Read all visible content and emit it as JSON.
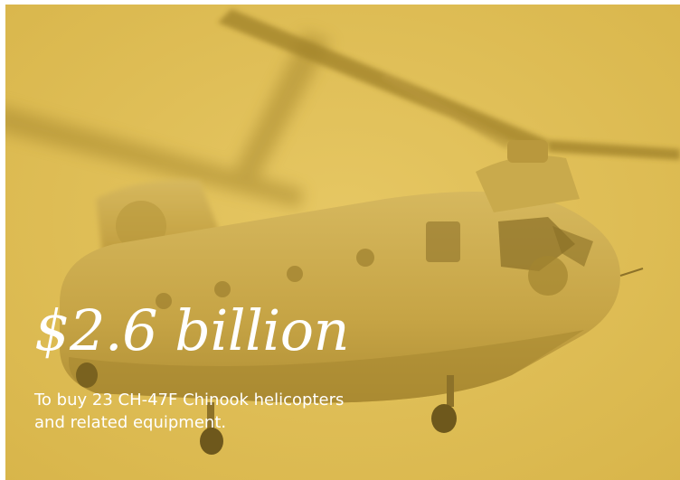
{
  "image": {
    "subject": "chinook-helicopter-photo",
    "tint_color": "#d8b54a"
  },
  "headline": {
    "amount": "$2.6 billion",
    "caption_line1": "To buy 23 CH-47F Chinook helicopters",
    "caption_line2": "and related equipment."
  }
}
